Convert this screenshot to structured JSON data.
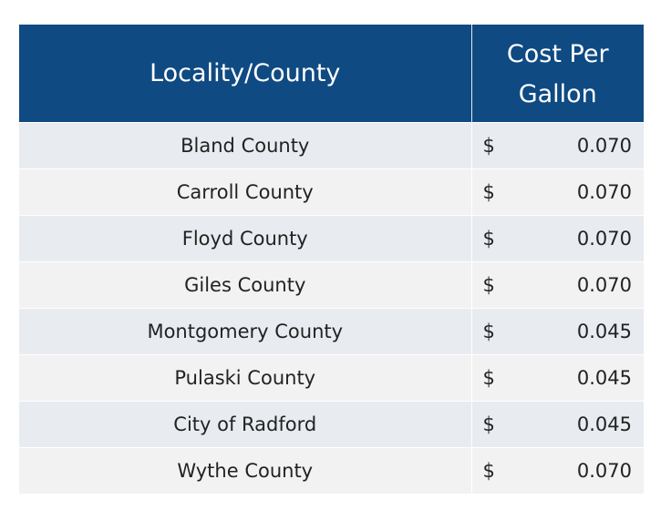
{
  "table": {
    "headers": {
      "locality": "Locality/County",
      "cost_line1": "Cost Per",
      "cost_line2": "Gallon"
    },
    "currency_symbol": "$",
    "rows": [
      {
        "locality": "Bland County",
        "cost": "0.070"
      },
      {
        "locality": "Carroll County",
        "cost": "0.070"
      },
      {
        "locality": "Floyd County",
        "cost": "0.070"
      },
      {
        "locality": "Giles County",
        "cost": "0.070"
      },
      {
        "locality": "Montgomery County",
        "cost": "0.045"
      },
      {
        "locality": "Pulaski County",
        "cost": "0.045"
      },
      {
        "locality": "City of Radford",
        "cost": "0.045"
      },
      {
        "locality": "Wythe County",
        "cost": "0.070"
      }
    ]
  },
  "colors": {
    "header_bg": "#0f4a82",
    "row_odd_bg": "#e8ecf0",
    "row_even_bg": "#f2f2f2"
  }
}
